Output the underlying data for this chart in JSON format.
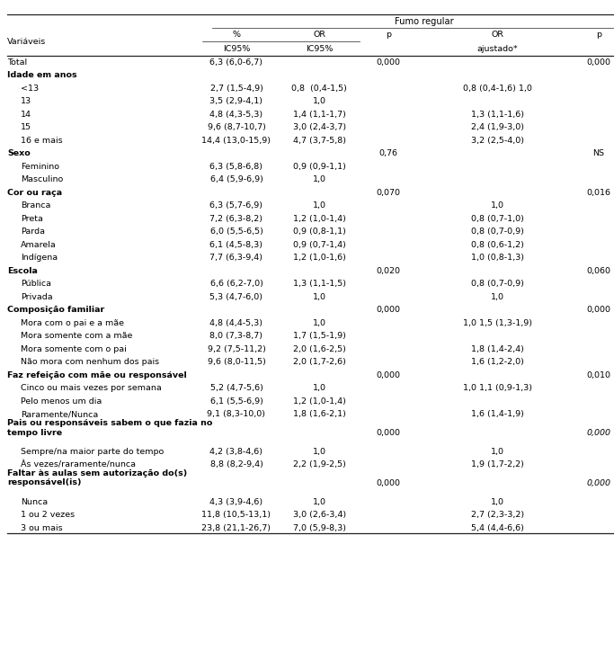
{
  "rows": [
    {
      "label": "Total",
      "indent": 0,
      "bold": false,
      "pct": "6,3 (6,0-6,7)",
      "or_val": "",
      "p": "0,000",
      "or_adj": "",
      "p2": "0,000",
      "italic_p2": false
    },
    {
      "label": "Idade em anos",
      "indent": 0,
      "bold": true,
      "pct": "",
      "or_val": "",
      "p": "",
      "or_adj": "",
      "p2": "",
      "italic_p2": false
    },
    {
      "label": "<13",
      "indent": 1,
      "bold": false,
      "pct": "2,7 (1,5-4,9)",
      "or_val": "0,8  (0,4-1,5)",
      "p": "",
      "or_adj": "0,8 (0,4-1,6) 1,0",
      "p2": "",
      "italic_p2": false
    },
    {
      "label": "13",
      "indent": 1,
      "bold": false,
      "pct": "3,5 (2,9-4,1)",
      "or_val": "1,0",
      "p": "",
      "or_adj": "",
      "p2": "",
      "italic_p2": false
    },
    {
      "label": "14",
      "indent": 1,
      "bold": false,
      "pct": "4,8 (4,3-5,3)",
      "or_val": "1,4 (1,1-1,7)",
      "p": "",
      "or_adj": "1,3 (1,1-1,6)",
      "p2": "",
      "italic_p2": false
    },
    {
      "label": "15",
      "indent": 1,
      "bold": false,
      "pct": "9,6 (8,7-10,7)",
      "or_val": "3,0 (2,4-3,7)",
      "p": "",
      "or_adj": "2,4 (1,9-3,0)",
      "p2": "",
      "italic_p2": false
    },
    {
      "label": "16 e mais",
      "indent": 1,
      "bold": false,
      "pct": "14,4 (13,0-15,9)",
      "or_val": "4,7 (3,7-5,8)",
      "p": "",
      "or_adj": "3,2 (2,5-4,0)",
      "p2": "",
      "italic_p2": false
    },
    {
      "label": "Sexo",
      "indent": 0,
      "bold": true,
      "pct": "",
      "or_val": "",
      "p": "0,76",
      "or_adj": "",
      "p2": "NS",
      "italic_p2": false
    },
    {
      "label": "Feminino",
      "indent": 1,
      "bold": false,
      "pct": "6,3 (5,8-6,8)",
      "or_val": "0,9 (0,9-1,1)",
      "p": "",
      "or_adj": "",
      "p2": "",
      "italic_p2": false
    },
    {
      "label": "Masculino",
      "indent": 1,
      "bold": false,
      "pct": "6,4 (5,9-6,9)",
      "or_val": "1,0",
      "p": "",
      "or_adj": "",
      "p2": "",
      "italic_p2": false
    },
    {
      "label": "Cor ou raça",
      "indent": 0,
      "bold": true,
      "pct": "",
      "or_val": "",
      "p": "0,070",
      "or_adj": "",
      "p2": "0,016",
      "italic_p2": false
    },
    {
      "label": "Branca",
      "indent": 1,
      "bold": false,
      "pct": "6,3 (5,7-6,9)",
      "or_val": "1,0",
      "p": "",
      "or_adj": "1,0",
      "p2": "",
      "italic_p2": false
    },
    {
      "label": "Preta",
      "indent": 1,
      "bold": false,
      "pct": "7,2 (6,3-8,2)",
      "or_val": "1,2 (1,0-1,4)",
      "p": "",
      "or_adj": "0,8 (0,7-1,0)",
      "p2": "",
      "italic_p2": false
    },
    {
      "label": "Parda",
      "indent": 1,
      "bold": false,
      "pct": "6,0 (5,5-6,5)",
      "or_val": "0,9 (0,8-1,1)",
      "p": "",
      "or_adj": "0,8 (0,7-0,9)",
      "p2": "",
      "italic_p2": false
    },
    {
      "label": "Amarela",
      "indent": 1,
      "bold": false,
      "pct": "6,1 (4,5-8,3)",
      "or_val": "0,9 (0,7-1,4)",
      "p": "",
      "or_adj": "0,8 (0,6-1,2)",
      "p2": "",
      "italic_p2": false
    },
    {
      "label": "Indígena",
      "indent": 1,
      "bold": false,
      "pct": "7,7 (6,3-9,4)",
      "or_val": "1,2 (1,0-1,6)",
      "p": "",
      "or_adj": "1,0 (0,8-1,3)",
      "p2": "",
      "italic_p2": false
    },
    {
      "label": "Escola",
      "indent": 0,
      "bold": true,
      "pct": "",
      "or_val": "",
      "p": "0,020",
      "or_adj": "",
      "p2": "0,060",
      "italic_p2": false
    },
    {
      "label": "Pública",
      "indent": 1,
      "bold": false,
      "pct": "6,6 (6,2-7,0)",
      "or_val": "1,3 (1,1-1,5)",
      "p": "",
      "or_adj": "0,8 (0,7-0,9)",
      "p2": "",
      "italic_p2": false
    },
    {
      "label": "Privada",
      "indent": 1,
      "bold": false,
      "pct": "5,3 (4,7-6,0)",
      "or_val": "1,0",
      "p": "",
      "or_adj": "1,0",
      "p2": "",
      "italic_p2": false
    },
    {
      "label": "Composição familiar",
      "indent": 0,
      "bold": true,
      "pct": "",
      "or_val": "",
      "p": "0,000",
      "or_adj": "",
      "p2": "0,000",
      "italic_p2": false
    },
    {
      "label": "Mora com o pai e a mãe",
      "indent": 1,
      "bold": false,
      "pct": "4,8 (4,4-5,3)",
      "or_val": "1,0",
      "p": "",
      "or_adj": "1,0 1,5 (1,3-1,9)",
      "p2": "",
      "italic_p2": false
    },
    {
      "label": "Mora somente com a mãe",
      "indent": 1,
      "bold": false,
      "pct": "8,0 (7,3-8,7)",
      "or_val": "1,7 (1,5-1,9)",
      "p": "",
      "or_adj": "",
      "p2": "",
      "italic_p2": false
    },
    {
      "label": "Mora somente com o pai",
      "indent": 1,
      "bold": false,
      "pct": "9,2 (7,5-11,2)",
      "or_val": "2,0 (1,6-2,5)",
      "p": "",
      "or_adj": "1,8 (1,4-2,4)",
      "p2": "",
      "italic_p2": false
    },
    {
      "label": "Não mora com nenhum dos pais",
      "indent": 1,
      "bold": false,
      "pct": "9,6 (8,0-11,5)",
      "or_val": "2,0 (1,7-2,6)",
      "p": "",
      "or_adj": "1,6 (1,2-2,0)",
      "p2": "",
      "italic_p2": false
    },
    {
      "label": "Faz refeição com mãe ou responsável",
      "indent": 0,
      "bold": true,
      "pct": "",
      "or_val": "",
      "p": "0,000",
      "or_adj": "",
      "p2": "0,010",
      "italic_p2": false
    },
    {
      "label": "Cinco ou mais vezes por semana",
      "indent": 1,
      "bold": false,
      "pct": "5,2 (4,7-5,6)",
      "or_val": "1,0",
      "p": "",
      "or_adj": "1,0 1,1 (0,9-1,3)",
      "p2": "",
      "italic_p2": false
    },
    {
      "label": "Pelo menos um dia",
      "indent": 1,
      "bold": false,
      "pct": "6,1 (5,5-6,9)",
      "or_val": "1,2 (1,0-1,4)",
      "p": "",
      "or_adj": "",
      "p2": "",
      "italic_p2": false
    },
    {
      "label": "Raramente/Nunca",
      "indent": 1,
      "bold": false,
      "pct": "9,1 (8,3-10,0)",
      "or_val": "1,8 (1,6-2,1)",
      "p": "",
      "or_adj": "1,6 (1,4-1,9)",
      "p2": "",
      "italic_p2": false
    },
    {
      "label": "Pais ou responsáveis sabem o que fazia no\ntempo livre",
      "indent": 0,
      "bold": true,
      "pct": "",
      "or_val": "",
      "p": "0,000",
      "or_adj": "",
      "p2": "0,000",
      "italic_p2": true,
      "multiline": true
    },
    {
      "label": "Sempre/na maior parte do tempo",
      "indent": 1,
      "bold": false,
      "pct": "4,2 (3,8-4,6)",
      "or_val": "1,0",
      "p": "",
      "or_adj": "1,0",
      "p2": "",
      "italic_p2": false
    },
    {
      "label": "Às vezes/raramente/nunca",
      "indent": 1,
      "bold": false,
      "pct": "8,8 (8,2-9,4)",
      "or_val": "2,2 (1,9-2,5)",
      "p": "",
      "or_adj": "1,9 (1,7-2,2)",
      "p2": "",
      "italic_p2": false
    },
    {
      "label": "Faltar às aulas sem autorização do(s)\nresponsável(is)",
      "indent": 0,
      "bold": true,
      "pct": "",
      "or_val": "",
      "p": "0,000",
      "or_adj": "",
      "p2": "0,000",
      "italic_p2": true,
      "multiline": true
    },
    {
      "label": "Nunca",
      "indent": 1,
      "bold": false,
      "pct": "4,3 (3,9-4,6)",
      "or_val": "1,0",
      "p": "",
      "or_adj": "1,0",
      "p2": "",
      "italic_p2": false
    },
    {
      "label": "1 ou 2 vezes",
      "indent": 1,
      "bold": false,
      "pct": "11,8 (10,5-13,1)",
      "or_val": "3,0 (2,6-3,4)",
      "p": "",
      "or_adj": "2,7 (2,3-3,2)",
      "p2": "",
      "italic_p2": false
    },
    {
      "label": "3 ou mais",
      "indent": 1,
      "bold": false,
      "pct": "23,8 (21,1-26,7)",
      "or_val": "7,0 (5,9-8,3)",
      "p": "",
      "or_adj": "5,4 (4,4-6,6)",
      "p2": "",
      "italic_p2": false
    }
  ],
  "fig_width": 6.83,
  "fig_height": 7.44,
  "font_size": 6.8,
  "lc": "#222222"
}
